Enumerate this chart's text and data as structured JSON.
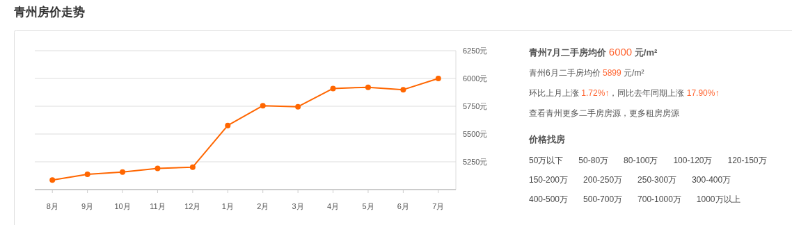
{
  "chart_data": [
    {
      "type": "line",
      "title": "青州房价走势",
      "categories": [
        "8月",
        "9月",
        "10月",
        "11月",
        "12月",
        "1月",
        "2月",
        "3月",
        "4月",
        "5月",
        "6月",
        "7月"
      ],
      "series": [
        {
          "color": "#ff6600",
          "values": [
            5086,
            5137,
            5158,
            5190,
            5202,
            5577,
            5755,
            5746,
            5910,
            5921,
            5899,
            6000
          ]
        }
      ],
      "ylim": [
        5000,
        6250
      ],
      "yticks": [
        {
          "value": 5000,
          "label": null
        },
        {
          "value": 5250,
          "label": "5250元"
        },
        {
          "value": 5500,
          "label": "5500元"
        },
        {
          "value": 5750,
          "label": "5750元"
        },
        {
          "value": 6000,
          "label": "6000元"
        },
        {
          "value": 6250,
          "label": "6250元"
        }
      ],
      "grid": "y",
      "marker": "circle",
      "line_style": "solid"
    },
    {
      "type": "other",
      "annotations": [
        "青州7月二手房均价 6000 元/m²",
        "青州6月二手房均价 5899 元/m²",
        "环比上月上涨 1.72%↑，同比去年同期上涨 17.90%↑",
        "查看青州更多二手房房源，更多租房房源",
        "价格找房",
        "50万以下",
        "50-80万",
        "80-100万",
        "100-120万",
        "120-150万",
        "150-200万",
        "200-250万",
        "250-300万",
        "300-400万",
        "400-500万",
        "500-700万",
        "700-1000万",
        "1000万以上"
      ]
    }
  ]
}
